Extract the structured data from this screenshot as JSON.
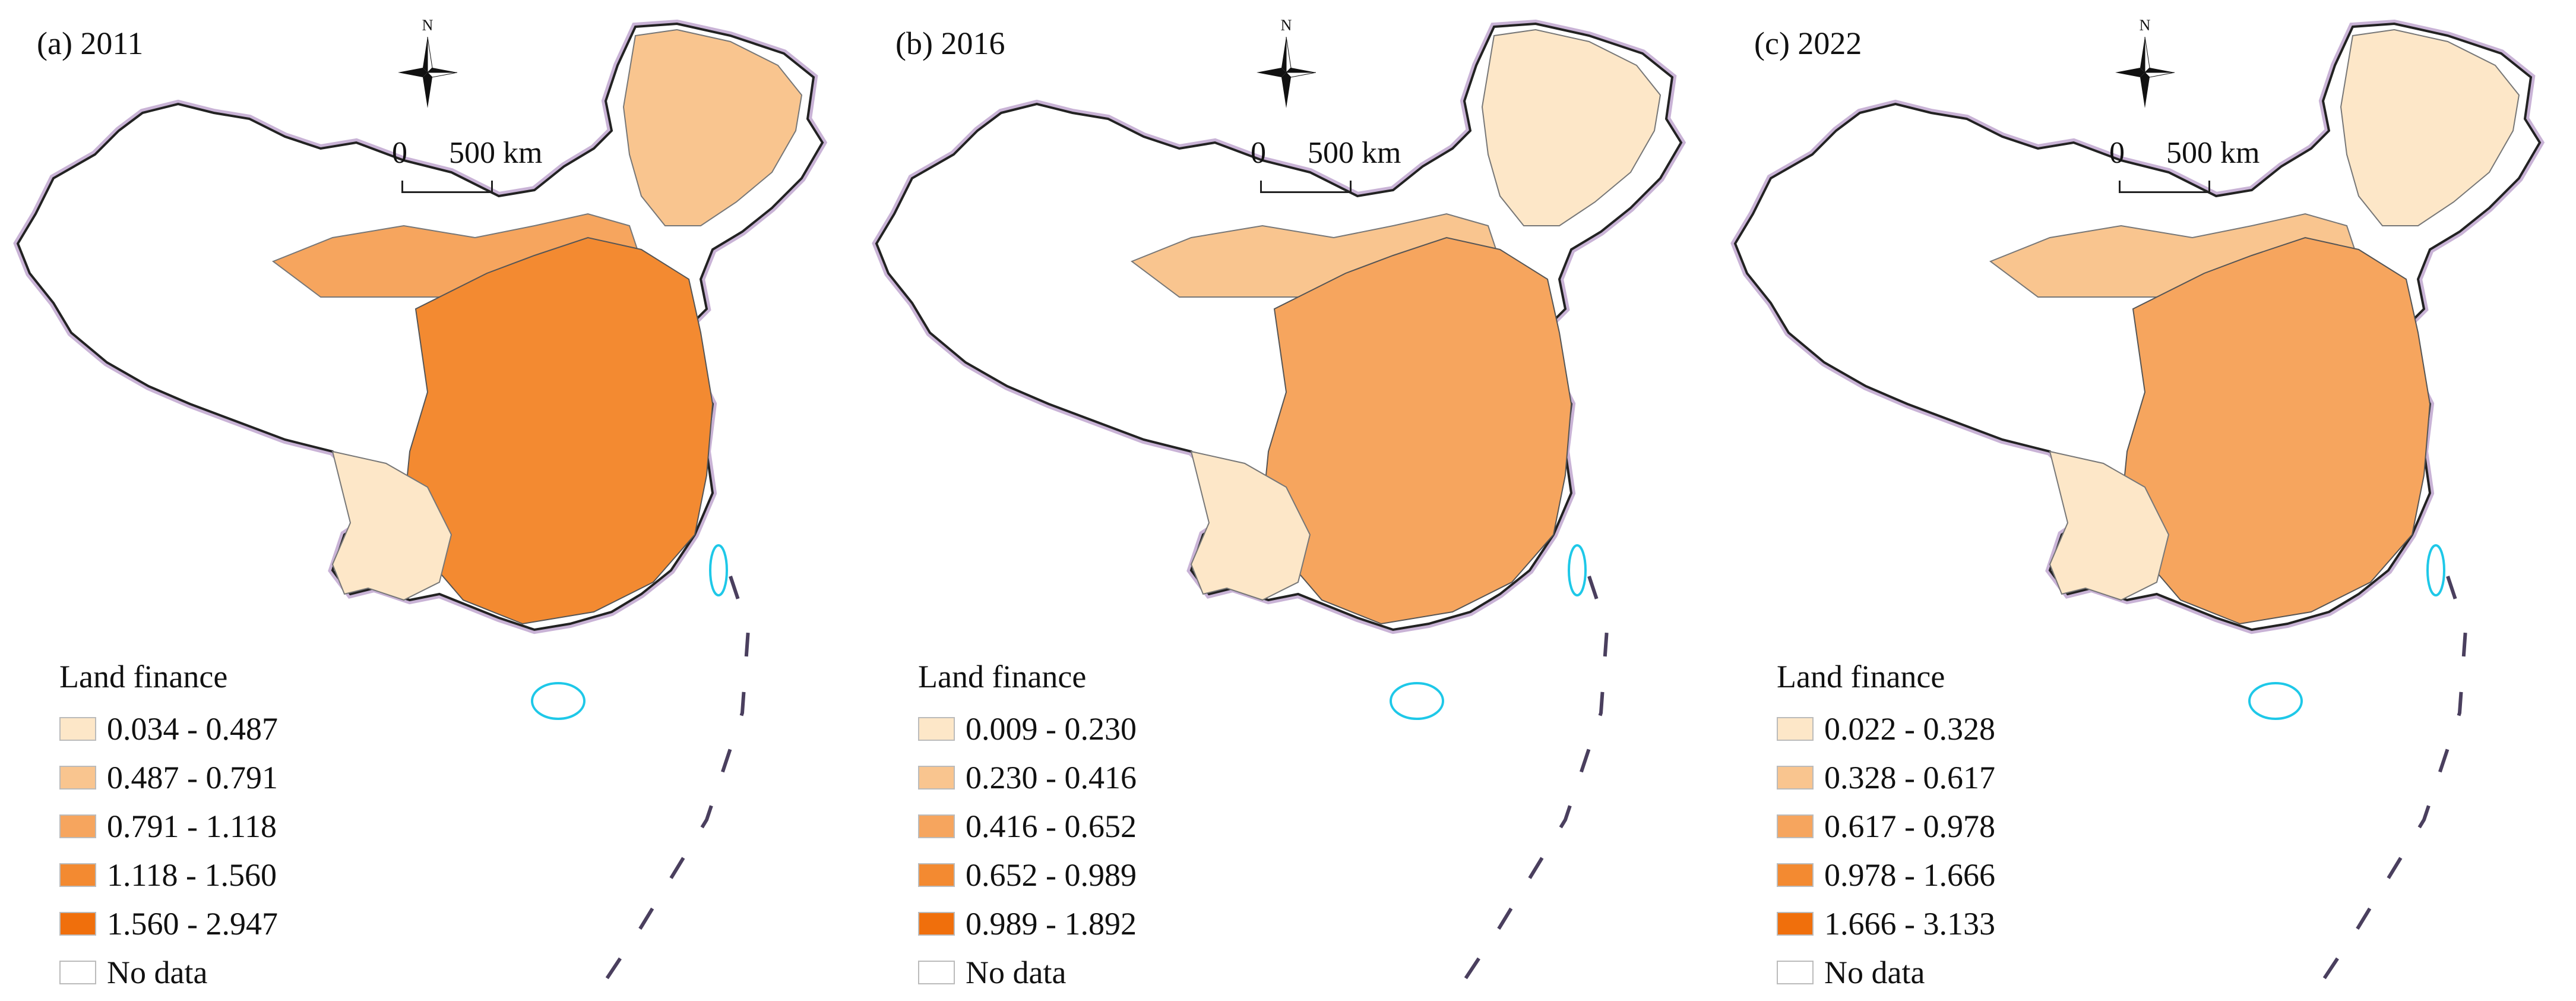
{
  "legend_colors": [
    "#fde7c8",
    "#f9c58f",
    "#f6a55e",
    "#f38a31",
    "#f06f0c",
    "#ffffff"
  ],
  "panels": [
    {
      "title": "(a) 2011",
      "north_label": "N",
      "scale": {
        "zero": "0",
        "distance": "500 km"
      },
      "legend": {
        "title": "Land finance",
        "items": [
          {
            "label": "0.034 - 0.487",
            "color": "#fde7c8"
          },
          {
            "label": "0.487 - 0.791",
            "color": "#f9c58f"
          },
          {
            "label": "0.791 - 1.118",
            "color": "#f6a55e"
          },
          {
            "label": "1.118 - 1.560",
            "color": "#f38a31"
          },
          {
            "label": "1.560 - 2.947",
            "color": "#f06f0c"
          },
          {
            "label": "No data",
            "color": "#ffffff"
          }
        ]
      }
    },
    {
      "title": "(b) 2016",
      "north_label": "N",
      "scale": {
        "zero": "0",
        "distance": "500 km"
      },
      "legend": {
        "title": "Land finance",
        "items": [
          {
            "label": "0.009 - 0.230",
            "color": "#fde7c8"
          },
          {
            "label": "0.230 - 0.416",
            "color": "#f9c58f"
          },
          {
            "label": "0.416 - 0.652",
            "color": "#f6a55e"
          },
          {
            "label": "0.652 - 0.989",
            "color": "#f38a31"
          },
          {
            "label": "0.989 - 1.892",
            "color": "#f06f0c"
          },
          {
            "label": "No data",
            "color": "#ffffff"
          }
        ]
      }
    },
    {
      "title": "(c) 2022",
      "north_label": "N",
      "scale": {
        "zero": "0",
        "distance": "500 km"
      },
      "legend": {
        "title": "Land finance",
        "items": [
          {
            "label": "0.022 - 0.328",
            "color": "#fde7c8"
          },
          {
            "label": "0.328 - 0.617",
            "color": "#f9c58f"
          },
          {
            "label": "0.617 - 0.978",
            "color": "#f6a55e"
          },
          {
            "label": "0.978 - 1.666",
            "color": "#f38a31"
          },
          {
            "label": "1.666 - 3.133",
            "color": "#f06f0c"
          },
          {
            "label": "No data",
            "color": "#ffffff"
          }
        ]
      }
    }
  ]
}
